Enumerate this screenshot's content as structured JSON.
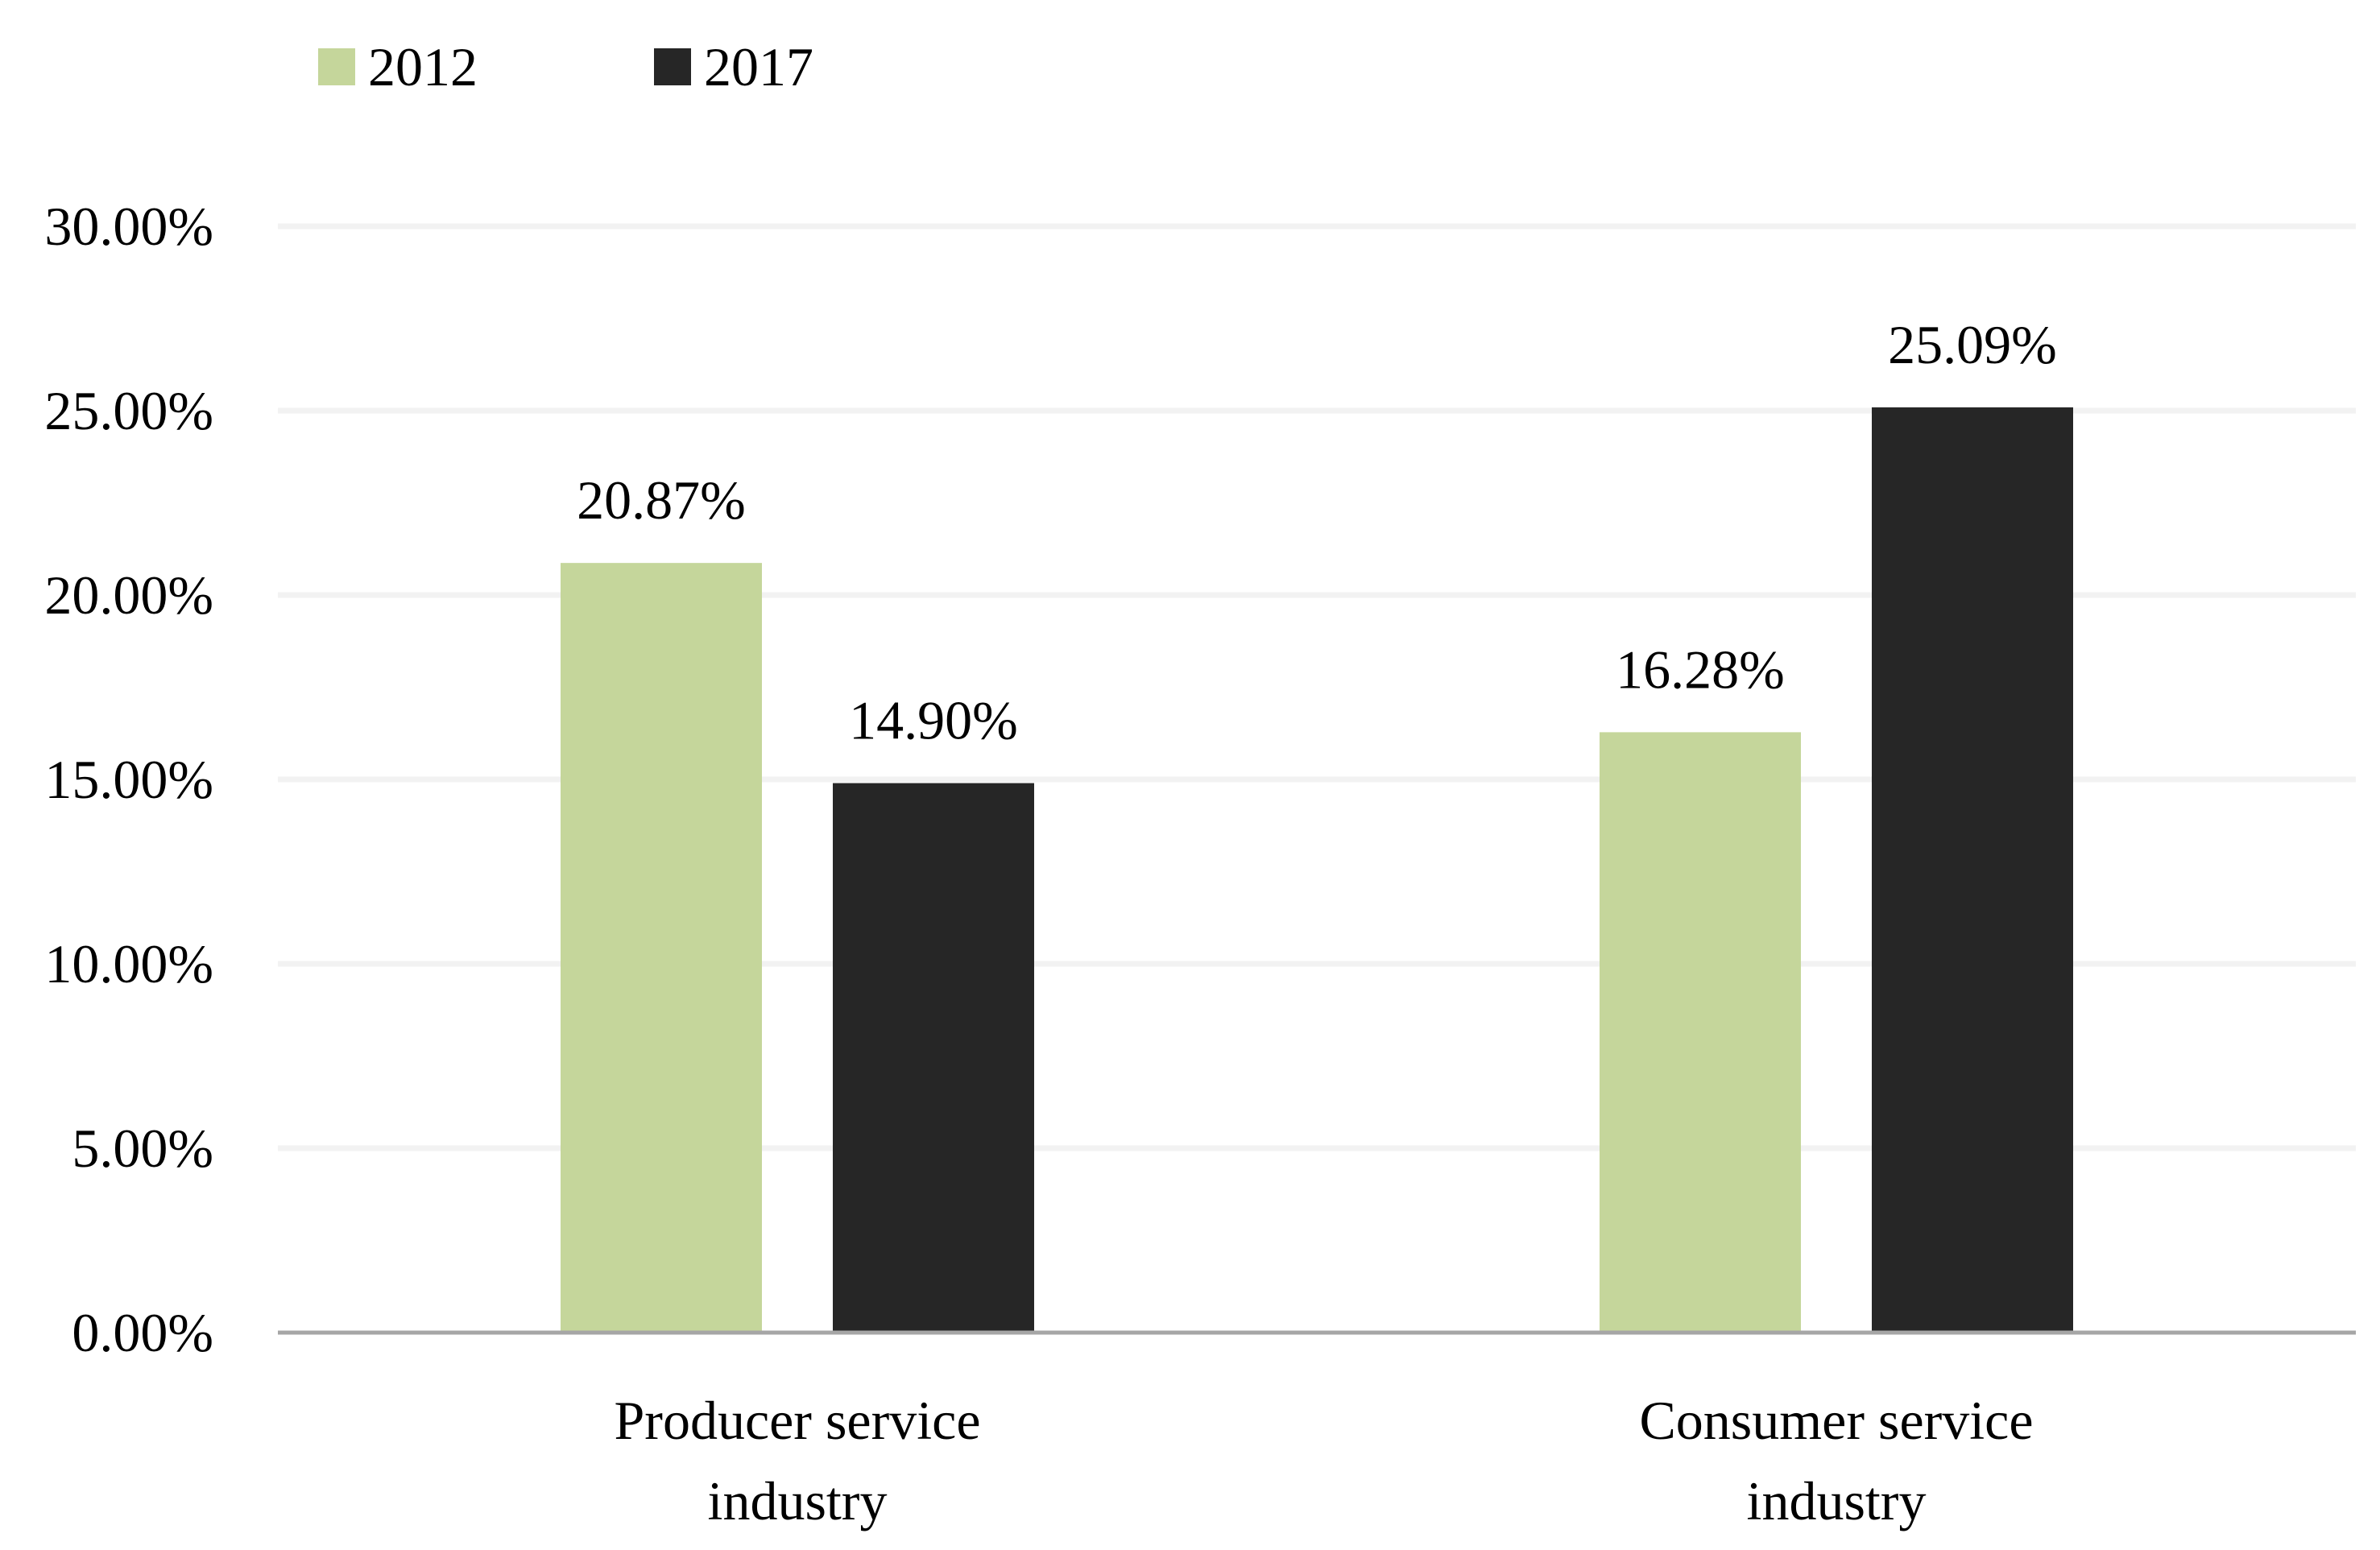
{
  "chart_data": {
    "type": "bar",
    "categories": [
      "Producer service industry",
      "Consumer service industry"
    ],
    "category_lines": [
      [
        "Producer service",
        "industry"
      ],
      [
        "Consumer service",
        "industry"
      ]
    ],
    "series": [
      {
        "name": "2012",
        "values": [
          20.87,
          16.28
        ],
        "labels": [
          "20.87%",
          "16.28%"
        ],
        "color": "#c5d69b"
      },
      {
        "name": "2017",
        "values": [
          14.9,
          25.09
        ],
        "labels": [
          "14.90%",
          "25.09%"
        ],
        "color": "#262626"
      }
    ],
    "ylim": [
      0,
      30
    ],
    "yticks": [
      0,
      5,
      10,
      15,
      20,
      25,
      30
    ],
    "ytick_labels": [
      "0.00%",
      "5.00%",
      "10.00%",
      "15.00%",
      "20.00%",
      "25.00%",
      "30.00%"
    ],
    "grid": true,
    "legend": "top-left",
    "colors": {
      "gridline": "#f2f2f2",
      "axis": "#a6a6a6",
      "text": "#000000"
    }
  }
}
